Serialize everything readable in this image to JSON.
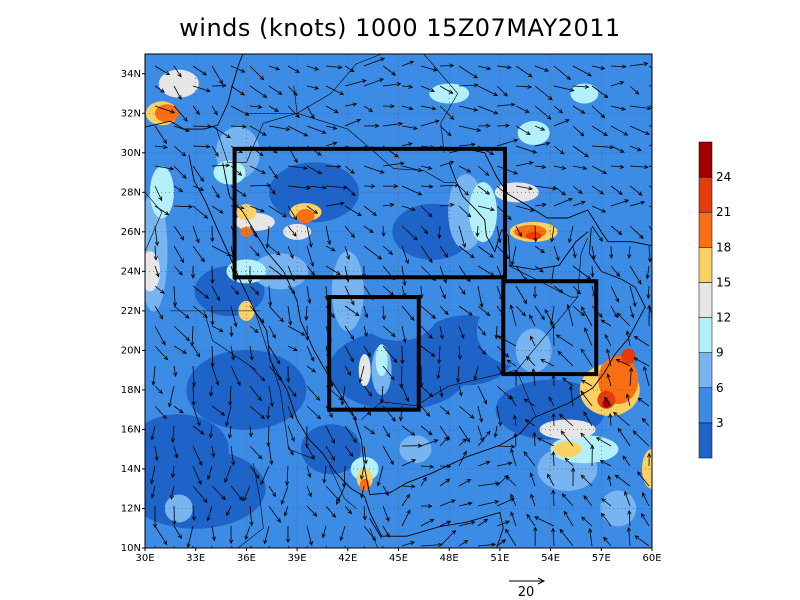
{
  "title": "winds (knots) 1000 15Z07MAY2011",
  "lat_labels": [
    "34N",
    "32N",
    "30N",
    "28N",
    "26N",
    "24N",
    "22N",
    "20N",
    "18N",
    "16N",
    "14N",
    "12N",
    "10N"
  ],
  "lat_values": [
    34,
    32,
    30,
    28,
    26,
    24,
    22,
    20,
    18,
    16,
    14,
    12,
    10
  ],
  "lon_labels": [
    "30E",
    "33E",
    "36E",
    "39E",
    "42E",
    "45E",
    "48E",
    "51E",
    "54E",
    "57E",
    "60E"
  ],
  "lon_values": [
    30,
    33,
    36,
    39,
    42,
    45,
    48,
    51,
    54,
    57,
    60
  ],
  "extent": {
    "lon": [
      30,
      60
    ],
    "lat": [
      10,
      35
    ]
  },
  "colorbar": {
    "labels": [
      "3",
      "6",
      "9",
      "12",
      "15",
      "18",
      "21",
      "24"
    ],
    "levels": [
      3,
      6,
      9,
      12,
      15,
      18,
      21,
      24
    ],
    "colors": [
      "#1e64c8",
      "#3c8ce6",
      "#78b4f0",
      "#b4f0fa",
      "#e6e6e6",
      "#fad264",
      "#fa6e14",
      "#e63c0a",
      "#a00000"
    ]
  },
  "reference_vector": {
    "label": "20",
    "knots": 20
  },
  "boxes": [
    {
      "name": "box-north",
      "lon": [
        35.3,
        51.3
      ],
      "lat": [
        23.7,
        30.2
      ]
    },
    {
      "name": "box-central",
      "lon": [
        40.9,
        46.2
      ],
      "lat": [
        17.0,
        22.7
      ]
    },
    {
      "name": "box-east",
      "lon": [
        51.2,
        56.7
      ],
      "lat": [
        18.8,
        23.5
      ]
    }
  ],
  "wind_maxima": [
    {
      "lon": 31.5,
      "lat": 32.0,
      "speed": 21
    },
    {
      "lon": 39.5,
      "lat": 26.8,
      "speed": 21
    },
    {
      "lon": 36.0,
      "lat": 26.0,
      "speed": 19
    },
    {
      "lon": 52.8,
      "lat": 26.2,
      "speed": 21
    },
    {
      "lon": 57.3,
      "lat": 17.5,
      "speed": 24
    },
    {
      "lon": 58.6,
      "lat": 19.7,
      "speed": 23
    },
    {
      "lon": 43.0,
      "lat": 13.2,
      "speed": 20
    }
  ]
}
